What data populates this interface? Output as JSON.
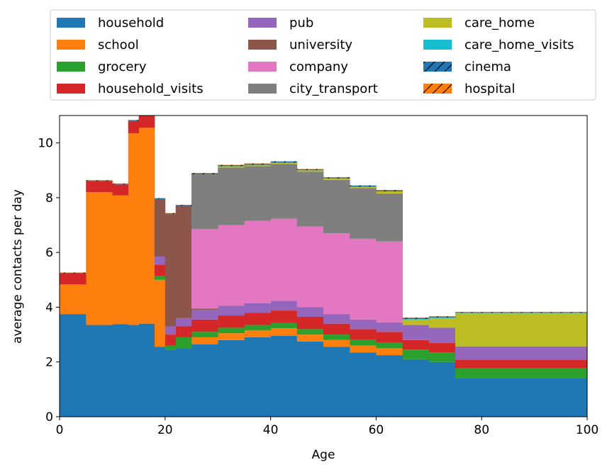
{
  "chart_data": {
    "type": "area",
    "title": "",
    "xlabel": "Age",
    "ylabel": "average contacts per day",
    "xlim": [
      0,
      100
    ],
    "ylim": [
      0,
      11
    ],
    "xticks": [
      "0",
      "20",
      "40",
      "60",
      "80",
      "100"
    ],
    "yticks": [
      "0",
      "2",
      "4",
      "6",
      "8",
      "10"
    ],
    "grid": false,
    "legend_placement": "top, above plot, 3 columns",
    "bins": [
      [
        0,
        5
      ],
      [
        5,
        10
      ],
      [
        10,
        13
      ],
      [
        13,
        15
      ],
      [
        15,
        18
      ],
      [
        18,
        20
      ],
      [
        20,
        22
      ],
      [
        22,
        25
      ],
      [
        25,
        30
      ],
      [
        30,
        35
      ],
      [
        35,
        40
      ],
      [
        40,
        45
      ],
      [
        45,
        50
      ],
      [
        50,
        55
      ],
      [
        55,
        60
      ],
      [
        60,
        65
      ],
      [
        65,
        70
      ],
      [
        70,
        75
      ],
      [
        75,
        100
      ]
    ],
    "series": [
      {
        "name": "household",
        "color": "#1f77b4",
        "hatch": false,
        "values": [
          3.75,
          3.35,
          3.38,
          3.35,
          3.4,
          2.55,
          2.45,
          2.5,
          2.65,
          2.8,
          2.9,
          2.95,
          2.75,
          2.55,
          2.35,
          2.25,
          2.1,
          2.0,
          1.42
        ]
      },
      {
        "name": "school",
        "color": "#ff7f0e",
        "hatch": false,
        "values": [
          1.08,
          4.85,
          4.7,
          7.0,
          7.15,
          2.45,
          0.0,
          0.0,
          0.25,
          0.25,
          0.25,
          0.28,
          0.25,
          0.25,
          0.25,
          0.25,
          0.0,
          0.0,
          0.0
        ]
      },
      {
        "name": "grocery",
        "color": "#2ca02c",
        "hatch": false,
        "values": [
          0.0,
          0.0,
          0.0,
          0.0,
          0.0,
          0.15,
          0.15,
          0.4,
          0.2,
          0.2,
          0.2,
          0.2,
          0.2,
          0.2,
          0.2,
          0.2,
          0.35,
          0.35,
          0.35
        ]
      },
      {
        "name": "household_visits",
        "color": "#d62728",
        "hatch": false,
        "values": [
          0.4,
          0.4,
          0.4,
          0.45,
          0.45,
          0.4,
          0.4,
          0.4,
          0.45,
          0.45,
          0.45,
          0.45,
          0.45,
          0.4,
          0.4,
          0.4,
          0.35,
          0.35,
          0.3
        ]
      },
      {
        "name": "pub",
        "color": "#9467bd",
        "hatch": false,
        "values": [
          0.0,
          0.0,
          0.0,
          0.0,
          0.0,
          0.3,
          0.3,
          0.3,
          0.35,
          0.35,
          0.35,
          0.35,
          0.35,
          0.35,
          0.35,
          0.35,
          0.55,
          0.55,
          0.5
        ]
      },
      {
        "name": "university",
        "color": "#8c564b",
        "hatch": false,
        "values": [
          0.0,
          0.0,
          0.0,
          0.0,
          0.0,
          2.1,
          4.1,
          4.1,
          0.05,
          0.0,
          0.0,
          0.0,
          0.0,
          0.0,
          0.0,
          0.0,
          0.0,
          0.0,
          0.0
        ]
      },
      {
        "name": "company",
        "color": "#e377c2",
        "hatch": false,
        "values": [
          0.0,
          0.0,
          0.0,
          0.0,
          0.0,
          0.0,
          0.0,
          0.0,
          2.9,
          2.95,
          3.0,
          3.0,
          2.95,
          2.95,
          2.95,
          2.95,
          0.0,
          0.0,
          0.0
        ]
      },
      {
        "name": "city_transport",
        "color": "#7f7f7f",
        "hatch": false,
        "values": [
          0.0,
          0.0,
          0.0,
          0.0,
          0.0,
          0.0,
          0.0,
          0.0,
          2.0,
          2.1,
          2.0,
          2.0,
          2.0,
          1.95,
          1.85,
          1.75,
          0.0,
          0.0,
          0.0
        ]
      },
      {
        "name": "care_home",
        "color": "#bcbd22",
        "hatch": false,
        "values": [
          0.0,
          0.0,
          0.0,
          0.0,
          0.0,
          0.0,
          0.0,
          0.0,
          0.0,
          0.05,
          0.05,
          0.05,
          0.05,
          0.05,
          0.05,
          0.08,
          0.2,
          0.35,
          1.2
        ]
      },
      {
        "name": "care_home_visits",
        "color": "#17becf",
        "hatch": false,
        "values": [
          0.0,
          0.0,
          0.0,
          0.0,
          0.0,
          0.0,
          0.0,
          0.0,
          0.0,
          0.0,
          0.0,
          0.0,
          0.0,
          0.0,
          0.0,
          0.0,
          0.02,
          0.02,
          0.03
        ]
      },
      {
        "name": "cinema",
        "color": "#1f77b4",
        "hatch": true,
        "values": [
          0.03,
          0.03,
          0.03,
          0.03,
          0.03,
          0.03,
          0.03,
          0.03,
          0.04,
          0.04,
          0.04,
          0.04,
          0.04,
          0.04,
          0.04,
          0.04,
          0.04,
          0.04,
          0.02
        ]
      },
      {
        "name": "hospital",
        "color": "#ff7f0e",
        "hatch": true,
        "values": [
          0.01,
          0.01,
          0.01,
          0.01,
          0.01,
          0.01,
          0.01,
          0.01,
          0.01,
          0.01,
          0.01,
          0.01,
          0.01,
          0.01,
          0.01,
          0.01,
          0.01,
          0.01,
          0.01
        ]
      }
    ]
  }
}
